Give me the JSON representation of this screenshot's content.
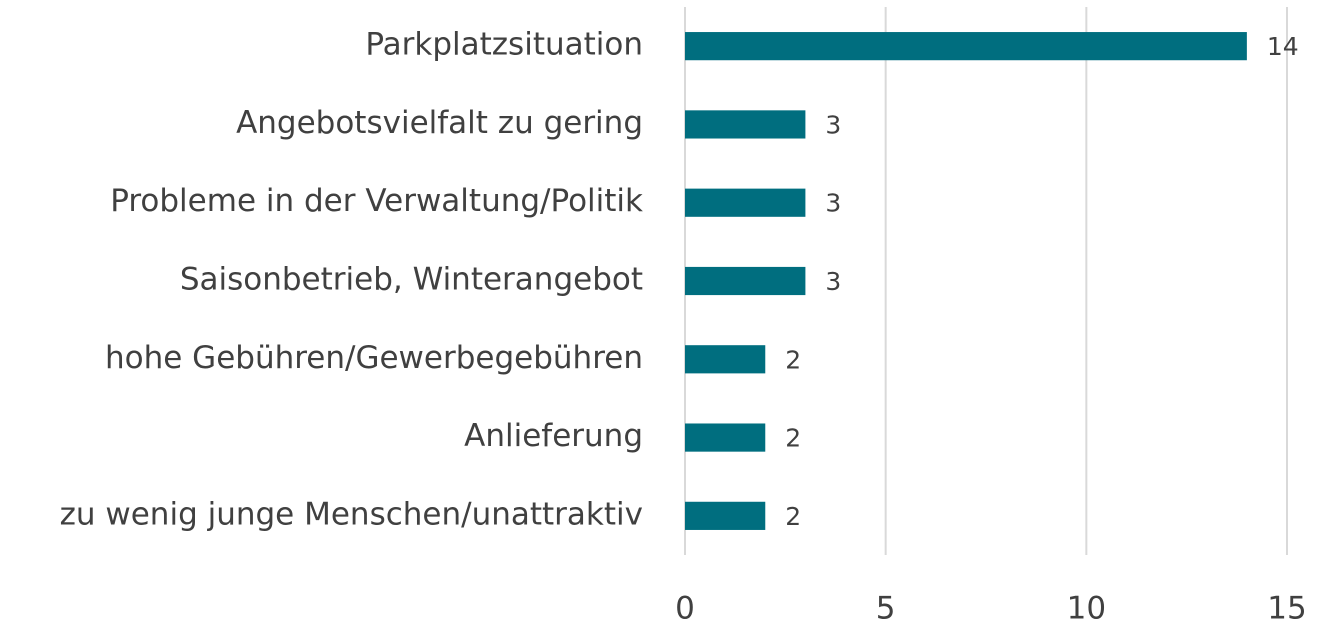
{
  "chart_data": {
    "type": "bar",
    "orientation": "horizontal",
    "categories": [
      "Parkplatzsituation",
      "Angebotsvielfalt zu gering",
      "Probleme in der Verwaltung/Politik",
      "Saisonbetrieb, Winterangebot",
      "hohe Gebühren/Gewerbegebühren",
      "Anlieferung",
      "zu wenig junge Menschen/unattraktiv"
    ],
    "values": [
      14,
      3,
      3,
      3,
      2,
      2,
      2
    ],
    "color": "#006e7f",
    "xlim": [
      0,
      15
    ],
    "xticks": [
      0,
      5,
      10,
      15
    ],
    "grid": true
  }
}
